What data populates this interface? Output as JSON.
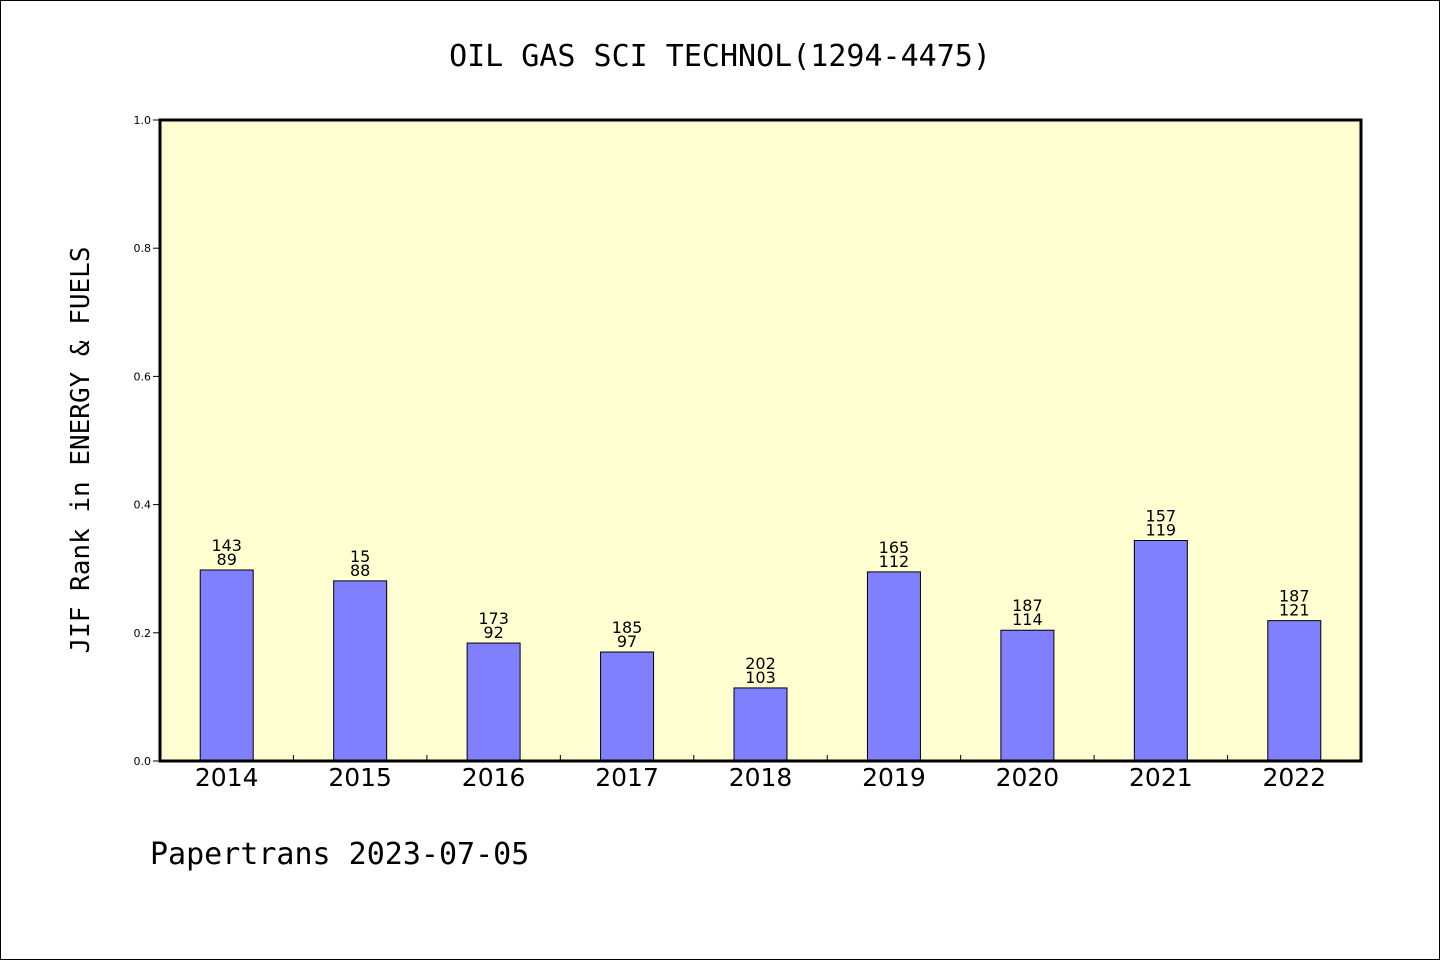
{
  "chart_data": {
    "type": "bar",
    "title": "OIL GAS SCI TECHNOL(1294-4475)",
    "ylabel": "JIF Rank in ENERGY & FUELS",
    "xlabel": "",
    "ylim": [
      0,
      1
    ],
    "yticks": [
      "0.0",
      "0.2",
      "0.4",
      "0.6",
      "0.8",
      "1.0"
    ],
    "yticks_values": [
      0,
      0.2,
      0.4,
      0.6,
      0.8,
      1.0
    ],
    "categories": [
      "2014",
      "2015",
      "2016",
      "2017",
      "2018",
      "2019",
      "2020",
      "2021",
      "2022"
    ],
    "values": [
      0.298,
      0.281,
      0.184,
      0.17,
      0.114,
      0.295,
      0.204,
      0.344,
      0.219
    ],
    "label_top": [
      "143",
      "15",
      "173",
      "185",
      "202",
      "165",
      "187",
      "157",
      "187"
    ],
    "label_bottom": [
      "89",
      "88",
      "92",
      "97",
      "103",
      "112",
      "114",
      "119",
      "121"
    ],
    "bar_color": "#8080ff",
    "plot_background": "#ffffd2",
    "grid": false,
    "legend": "none"
  },
  "footer": {
    "text": "Papertrans 2023-07-05"
  }
}
